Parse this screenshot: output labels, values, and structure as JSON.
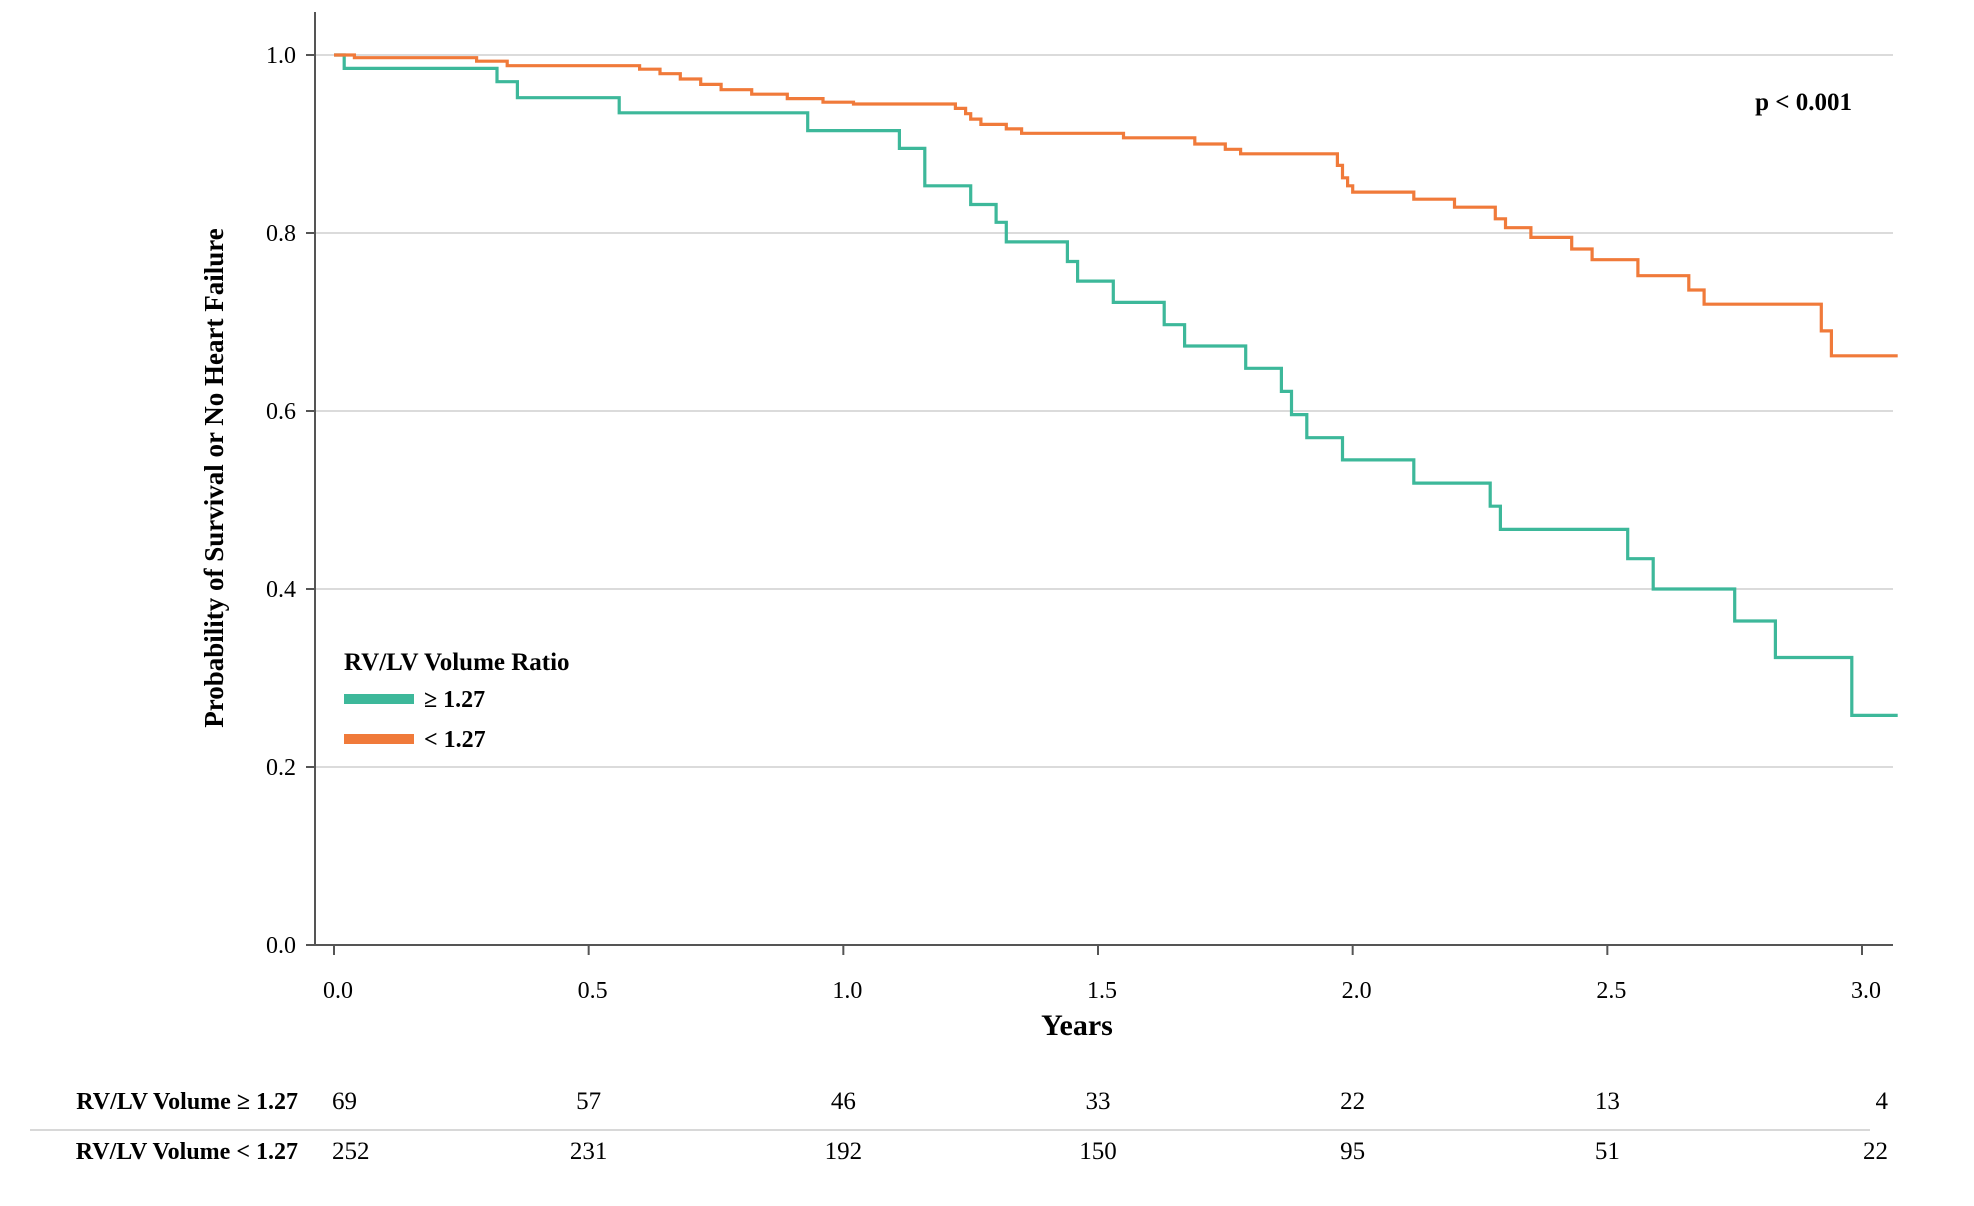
{
  "chart_data": {
    "type": "line",
    "subtype": "kaplan-meier",
    "xlabel": "Years",
    "ylabel": "Probability of Survival or No Heart Failure",
    "xlim": [
      0.0,
      3.07
    ],
    "ylim": [
      0.0,
      1.0
    ],
    "x_ticks": [
      "0.0",
      "0.5",
      "1.0",
      "1.5",
      "2.0",
      "2.5",
      "3.0"
    ],
    "y_ticks": [
      "0.0",
      "0.2",
      "0.4",
      "0.6",
      "0.8",
      "1.0"
    ],
    "grid": "horizontal",
    "annotation": "p < 0.001",
    "legend": {
      "title": "RV/LV Volume Ratio",
      "position": "middle-left",
      "entries": [
        "≥ 1.27",
        "< 1.27"
      ]
    },
    "series": [
      {
        "name": "≥ 1.27",
        "color": "#3db89a",
        "x": [
          0.0,
          0.02,
          0.32,
          0.36,
          0.56,
          0.93,
          1.11,
          1.16,
          1.25,
          1.3,
          1.32,
          1.44,
          1.46,
          1.53,
          1.63,
          1.67,
          1.79,
          1.86,
          1.88,
          1.91,
          1.98,
          2.12,
          2.27,
          2.29,
          2.54,
          2.59,
          2.75,
          2.83,
          2.98,
          3.07
        ],
        "y": [
          1.0,
          0.985,
          0.97,
          0.952,
          0.935,
          0.915,
          0.895,
          0.853,
          0.832,
          0.812,
          0.79,
          0.768,
          0.746,
          0.722,
          0.697,
          0.673,
          0.648,
          0.622,
          0.596,
          0.57,
          0.545,
          0.519,
          0.493,
          0.467,
          0.434,
          0.4,
          0.364,
          0.323,
          0.258,
          0.258
        ]
      },
      {
        "name": "< 1.27",
        "color": "#f07a3a",
        "x": [
          0.0,
          0.04,
          0.28,
          0.34,
          0.6,
          0.64,
          0.68,
          0.72,
          0.76,
          0.82,
          0.89,
          0.91,
          0.96,
          1.02,
          1.22,
          1.24,
          1.25,
          1.27,
          1.32,
          1.35,
          1.55,
          1.69,
          1.75,
          1.78,
          1.97,
          1.98,
          1.99,
          2.0,
          2.12,
          2.2,
          2.28,
          2.3,
          2.35,
          2.43,
          2.47,
          2.56,
          2.66,
          2.69,
          2.92,
          2.94,
          3.07
        ],
        "y": [
          1.0,
          0.997,
          0.993,
          0.988,
          0.984,
          0.979,
          0.973,
          0.967,
          0.961,
          0.956,
          0.951,
          0.951,
          0.947,
          0.945,
          0.94,
          0.934,
          0.928,
          0.922,
          0.917,
          0.912,
          0.907,
          0.9,
          0.894,
          0.889,
          0.876,
          0.862,
          0.853,
          0.846,
          0.838,
          0.829,
          0.816,
          0.806,
          0.795,
          0.782,
          0.77,
          0.752,
          0.736,
          0.72,
          0.69,
          0.662,
          0.662
        ]
      }
    ],
    "risk_table": {
      "times": [
        "0.0",
        "0.5",
        "1.0",
        "1.5",
        "2.0",
        "2.5",
        "3.0"
      ],
      "rows": [
        {
          "label": "RV/LV Volume ≥ 1.27",
          "values": [
            "69",
            "57",
            "46",
            "33",
            "22",
            "13",
            "4"
          ]
        },
        {
          "label": "RV/LV Volume < 1.27",
          "values": [
            "252",
            "231",
            "192",
            "150",
            "95",
            "51",
            "22"
          ]
        }
      ]
    }
  }
}
